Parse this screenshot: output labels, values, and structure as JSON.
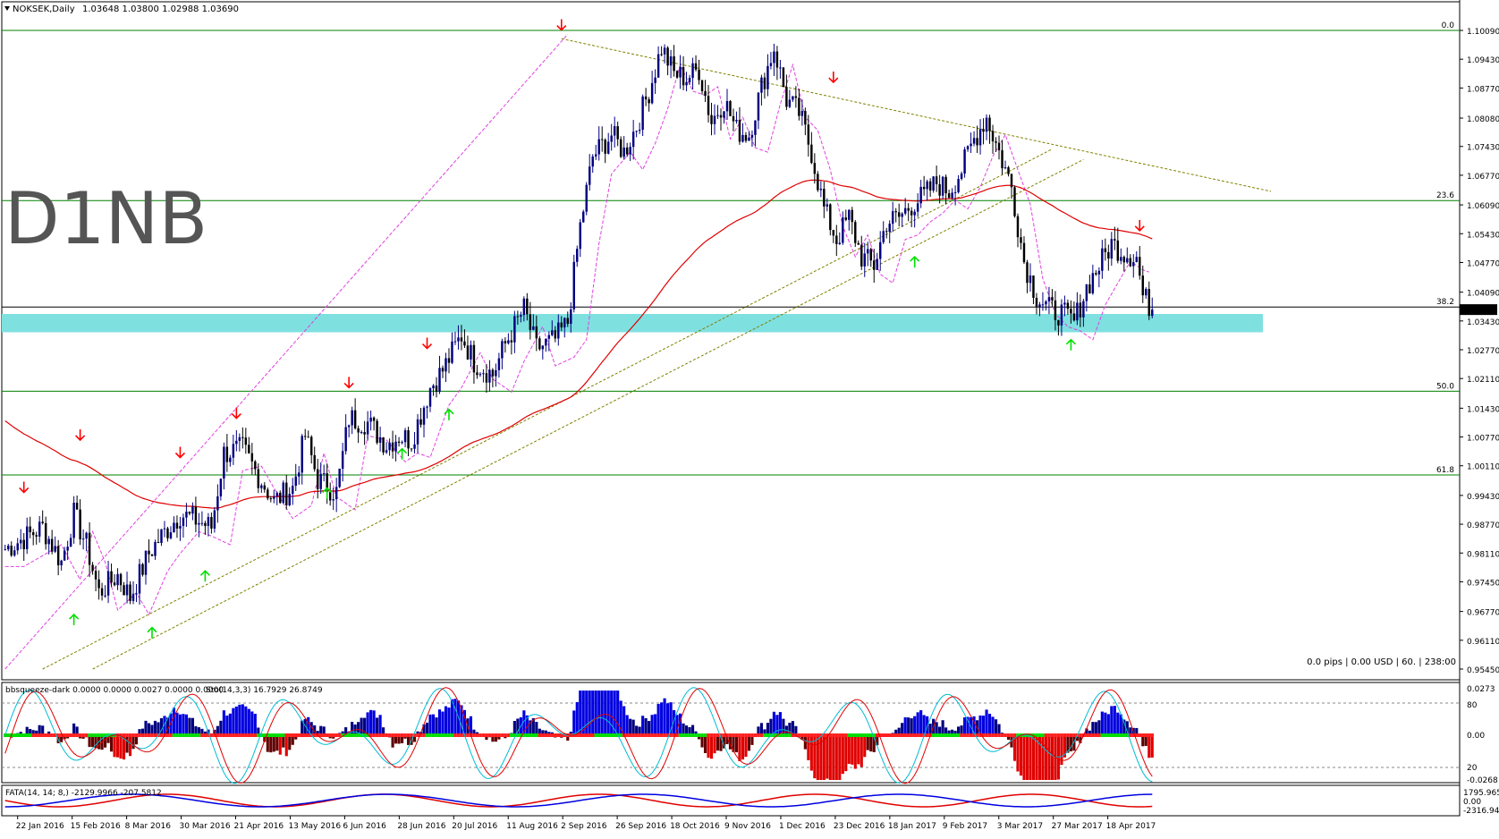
{
  "header": {
    "symbol_title": "NOKSEK,Daily",
    "ohlc": "1.03648 1.03800 1.02988 1.03690"
  },
  "watermark": "D1NB",
  "account_info": "0.0 pips | 0.00 USD | 60. | 238:00",
  "colors": {
    "up_candle": "#000080",
    "down_candle": "#000000",
    "ema_red": "#e00000",
    "envelope": "#e040e0",
    "trend_olive": "#808000",
    "fib_green": "#008000",
    "zone_cyan": "#7fe0e0",
    "arrow_up": "#00e000",
    "arrow_down": "#ff0000"
  },
  "chart_data": {
    "type": "candlestick",
    "symbol": "NOKSEK",
    "timeframe": "Daily",
    "last_price": 1.0369,
    "price_axis_ticks": [
      1.1009,
      1.0943,
      1.0877,
      1.0808,
      1.0743,
      1.0677,
      1.0609,
      1.0543,
      1.0477,
      1.0409,
      1.0343,
      1.0277,
      1.0211,
      1.0143,
      1.0077,
      1.0011,
      0.9943,
      0.9877,
      0.9811,
      0.9745,
      0.9677,
      0.9611,
      0.9545
    ],
    "price_axis_labels": [
      "1.10090",
      "1.09430",
      "1.08770",
      "1.08080",
      "1.07430",
      "1.06770",
      "1.06090",
      "1.05430",
      "1.04770",
      "1.04090",
      "1.03430",
      "1.02770",
      "1.02110",
      "1.01430",
      "1.00770",
      "1.00110",
      "0.99430",
      "0.98770",
      "0.98110",
      "0.97450",
      "0.96770",
      "0.96110",
      "0.95450"
    ],
    "last_price_label": "1.03690",
    "date_labels": [
      "22 Jan 2016",
      "15 Feb 2016",
      "8 Mar 2016",
      "30 Mar 2016",
      "21 Apr 2016",
      "13 May 2016",
      "6 Jun 2016",
      "28 Jun 2016",
      "20 Jul 2016",
      "11 Aug 2016",
      "2 Sep 2016",
      "26 Sep 2016",
      "18 Oct 2016",
      "9 Nov 2016",
      "1 Dec 2016",
      "23 Dec 2016",
      "18 Jan 2017",
      "9 Feb 2017",
      "3 Mar 2017",
      "27 Mar 2017",
      "18 Apr 2017"
    ],
    "fibonacci": [
      {
        "level": "0.0",
        "price": 1.1009
      },
      {
        "level": "23.6",
        "price": 1.0619
      },
      {
        "level": "38.2",
        "price": 1.0375
      },
      {
        "level": "50.0",
        "price": 1.0182
      },
      {
        "level": "61.8",
        "price": 0.999
      }
    ],
    "support_zone": [
      1.0317,
      1.0359
    ],
    "close_path": [
      [
        0,
        0.982
      ],
      [
        12,
        0.987
      ],
      [
        18,
        0.979
      ],
      [
        22,
        0.99
      ],
      [
        26,
        0.983
      ],
      [
        30,
        0.972
      ],
      [
        36,
        0.976
      ],
      [
        40,
        0.971
      ],
      [
        46,
        0.981
      ],
      [
        50,
        0.985
      ],
      [
        56,
        0.99
      ],
      [
        60,
        0.989
      ],
      [
        66,
        0.987
      ],
      [
        70,
        1.004
      ],
      [
        76,
        1.005
      ],
      [
        80,
        1.0
      ],
      [
        86,
        0.993
      ],
      [
        92,
        0.996
      ],
      [
        96,
        1.008
      ],
      [
        100,
        0.998
      ],
      [
        106,
        0.995
      ],
      [
        110,
        1.012
      ],
      [
        116,
        1.011
      ],
      [
        122,
        1.006
      ],
      [
        126,
        1.008
      ],
      [
        130,
        1.007
      ],
      [
        136,
        1.019
      ],
      [
        140,
        1.023
      ],
      [
        146,
        1.031
      ],
      [
        150,
        1.025
      ],
      [
        156,
        1.022
      ],
      [
        160,
        1.029
      ],
      [
        166,
        1.037
      ],
      [
        170,
        1.028
      ],
      [
        176,
        1.03
      ],
      [
        180,
        1.034
      ],
      [
        184,
        1.056
      ],
      [
        188,
        1.072
      ],
      [
        194,
        1.077
      ],
      [
        198,
        1.073
      ],
      [
        202,
        1.079
      ],
      [
        206,
        1.087
      ],
      [
        210,
        1.097
      ],
      [
        214,
        1.091
      ],
      [
        218,
        1.09
      ],
      [
        222,
        1.092
      ],
      [
        226,
        1.08
      ],
      [
        230,
        1.085
      ],
      [
        234,
        1.078
      ],
      [
        238,
        1.077
      ],
      [
        242,
        1.088
      ],
      [
        246,
        1.097
      ],
      [
        250,
        1.085
      ],
      [
        254,
        1.082
      ],
      [
        258,
        1.073
      ],
      [
        262,
        1.06
      ],
      [
        266,
        1.053
      ],
      [
        270,
        1.058
      ],
      [
        274,
        1.049
      ],
      [
        278,
        1.047
      ],
      [
        282,
        1.057
      ],
      [
        286,
        1.058
      ],
      [
        290,
        1.061
      ],
      [
        294,
        1.063
      ],
      [
        298,
        1.066
      ],
      [
        302,
        1.064
      ],
      [
        306,
        1.069
      ],
      [
        310,
        1.076
      ],
      [
        314,
        1.081
      ],
      [
        318,
        1.073
      ],
      [
        322,
        1.065
      ],
      [
        326,
        1.048
      ],
      [
        330,
        1.04
      ],
      [
        334,
        1.037
      ],
      [
        338,
        1.036
      ],
      [
        342,
        1.034
      ],
      [
        346,
        1.042
      ],
      [
        350,
        1.047
      ],
      [
        354,
        1.052
      ],
      [
        358,
        1.05
      ],
      [
        362,
        1.049
      ],
      [
        364,
        1.04
      ],
      [
        367,
        1.0369
      ]
    ],
    "arrows_down": [
      [
        6,
        0.995
      ],
      [
        24,
        1.007
      ],
      [
        56,
        1.003
      ],
      [
        74,
        1.012
      ],
      [
        110,
        1.019
      ],
      [
        135,
        1.028
      ],
      [
        178,
        1.101
      ],
      [
        265,
        1.089
      ],
      [
        363,
        1.055
      ]
    ],
    "arrows_up": [
      [
        22,
        0.967
      ],
      [
        47,
        0.964
      ],
      [
        64,
        0.977
      ],
      [
        103,
        0.996
      ],
      [
        127,
        1.005
      ],
      [
        142,
        1.014
      ],
      [
        291,
        1.049
      ],
      [
        341,
        1.03
      ]
    ],
    "indicators": {
      "squeeze_header": "bbsqueeze-dark 0.0000 0.0000 0.0027 0.0000 0.0000",
      "sto_header": "Sto(14,3,3) 16.7929 26.8749",
      "squeeze_axis": [
        "0.0273",
        "80",
        "0.00",
        "20",
        "-0.0268"
      ],
      "fata_header": "FATA(14, 14; 8,) -2129.9966 -207.5812",
      "fata_axis": [
        "1795.965",
        "0.00",
        "-2316.947"
      ]
    }
  }
}
